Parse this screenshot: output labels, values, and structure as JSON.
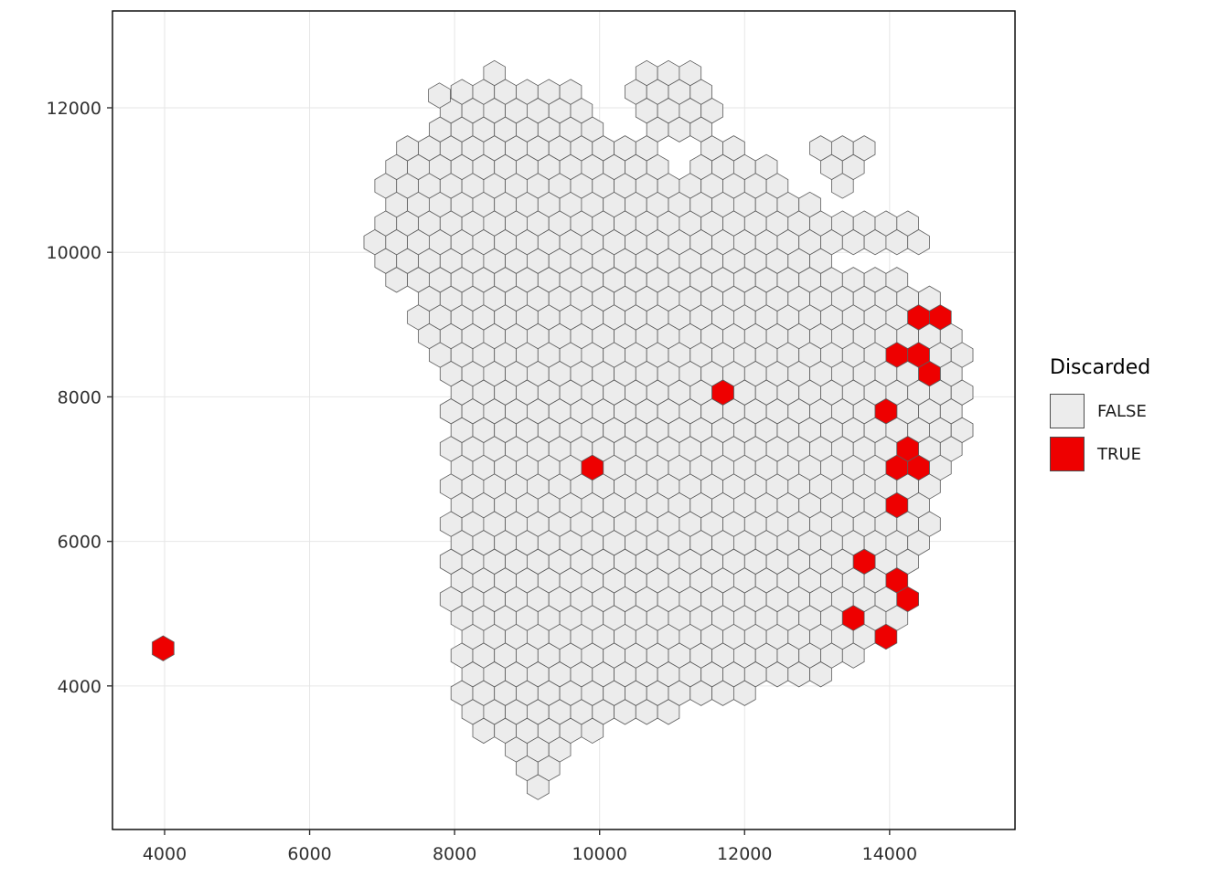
{
  "chart_data": {
    "type": "hexbin",
    "title": "",
    "legend": {
      "title": "Discarded",
      "entries": [
        {
          "label": "FALSE",
          "color": "#ECECEC"
        },
        {
          "label": "TRUE",
          "color": "#EE0000"
        }
      ]
    },
    "x_ticks": [
      4000,
      6000,
      8000,
      10000,
      12000,
      14000
    ],
    "y_ticks": [
      4000,
      6000,
      8000,
      10000,
      12000
    ],
    "xlim": [
      3281,
      15730
    ],
    "ylim": [
      2013,
      13340
    ],
    "hex_width": 300,
    "hex_row_spacing": 260,
    "grid_on": true,
    "legend_position": "right",
    "colors": {
      "false_fill": "#ECECEC",
      "true_fill": "#EE0000",
      "hex_stroke": "#5b5b5b",
      "panel_border": "#000000",
      "grid": "#e6e6e6",
      "tick_text": "#303030",
      "tick_mark": "#333333"
    },
    "region_polygons": {
      "main": [
        [
          8050,
          12300
        ],
        [
          8300,
          12250
        ],
        [
          8450,
          12550
        ],
        [
          8800,
          12500
        ],
        [
          9050,
          12300
        ],
        [
          9300,
          12520
        ],
        [
          9650,
          12420
        ],
        [
          9900,
          12150
        ],
        [
          10050,
          11750
        ],
        [
          10250,
          11600
        ],
        [
          10600,
          11600
        ],
        [
          10900,
          11350
        ],
        [
          11100,
          11050
        ],
        [
          11300,
          11300
        ],
        [
          11600,
          11500
        ],
        [
          11900,
          11500
        ],
        [
          12200,
          11300
        ],
        [
          12500,
          11050
        ],
        [
          12900,
          10700
        ],
        [
          13100,
          10450
        ],
        [
          13500,
          10500
        ],
        [
          14150,
          10550
        ],
        [
          14500,
          10350
        ],
        [
          14450,
          10100
        ],
        [
          13800,
          10050
        ],
        [
          13450,
          10100
        ],
        [
          13200,
          9900
        ],
        [
          13600,
          9800
        ],
        [
          13950,
          9750
        ],
        [
          14400,
          9500
        ],
        [
          14900,
          9300
        ],
        [
          15100,
          8900
        ],
        [
          15150,
          8300
        ],
        [
          15100,
          7600
        ],
        [
          14950,
          7000
        ],
        [
          14700,
          6500
        ],
        [
          14500,
          6050
        ],
        [
          14400,
          5650
        ],
        [
          14250,
          5000
        ],
        [
          14000,
          4650
        ],
        [
          13600,
          4300
        ],
        [
          13000,
          4050
        ],
        [
          12300,
          3900
        ],
        [
          11700,
          3800
        ],
        [
          11100,
          3650
        ],
        [
          10500,
          3450
        ],
        [
          9950,
          3350
        ],
        [
          9600,
          3000
        ],
        [
          9350,
          2550
        ],
        [
          9050,
          2450
        ],
        [
          8800,
          2700
        ],
        [
          8750,
          3100
        ],
        [
          8450,
          3200
        ],
        [
          8150,
          3600
        ],
        [
          8000,
          4100
        ],
        [
          7950,
          4700
        ],
        [
          7900,
          5900
        ],
        [
          7950,
          7200
        ],
        [
          7900,
          8100
        ],
        [
          7650,
          8700
        ],
        [
          7400,
          9300
        ],
        [
          7100,
          9750
        ],
        [
          6850,
          10000
        ],
        [
          6800,
          10350
        ],
        [
          6950,
          10800
        ],
        [
          7050,
          11150
        ],
        [
          7350,
          11600
        ],
        [
          7800,
          11800
        ]
      ],
      "north_cluster": [
        [
          10350,
          12250
        ],
        [
          10700,
          12600
        ],
        [
          11200,
          12620
        ],
        [
          11650,
          12250
        ],
        [
          11600,
          11750
        ],
        [
          11150,
          11500
        ],
        [
          10650,
          11600
        ],
        [
          10400,
          11900
        ]
      ],
      "northeast_cluster": [
        [
          12900,
          11450
        ],
        [
          13250,
          11700
        ],
        [
          13700,
          11450
        ],
        [
          13800,
          11050
        ],
        [
          13300,
          10900
        ],
        [
          12950,
          11100
        ]
      ]
    },
    "standalone_false_hexes": [
      [
        7790,
        12170
      ]
    ],
    "true_hexes": [
      [
        3980,
        4520
      ],
      [
        9900,
        6950
      ],
      [
        11650,
        8180
      ],
      [
        14000,
        8620
      ],
      [
        14500,
        8630
      ],
      [
        14600,
        8450
      ],
      [
        14440,
        9020
      ],
      [
        14740,
        9020
      ],
      [
        13980,
        7950
      ],
      [
        14150,
        7390
      ],
      [
        14300,
        7130
      ],
      [
        14150,
        6960
      ],
      [
        14180,
        6480
      ],
      [
        13590,
        5630
      ],
      [
        14130,
        5540
      ],
      [
        14170,
        5100
      ],
      [
        13590,
        4950
      ],
      [
        13970,
        4760
      ]
    ]
  }
}
